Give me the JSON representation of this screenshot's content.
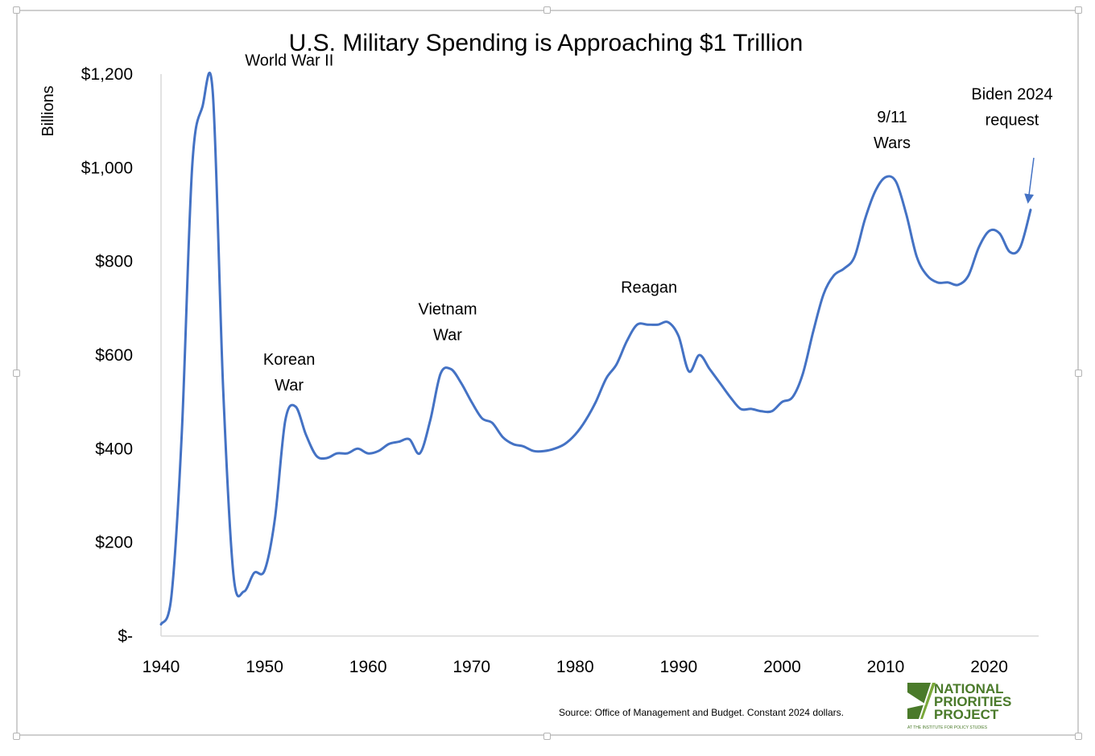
{
  "chart_data": {
    "type": "line",
    "title": "U.S. Military Spending is Approaching $1 Trillion",
    "xlabel": "",
    "ylabel": "Billions",
    "xlim": [
      1940,
      2024
    ],
    "ylim": [
      0,
      1200
    ],
    "x_ticks": [
      "1940",
      "1950",
      "1960",
      "1970",
      "1980",
      "1990",
      "2000",
      "2010",
      "2020"
    ],
    "y_ticks": [
      "$-",
      "$200",
      "$400",
      "$600",
      "$800",
      "$1,000",
      "$1,200"
    ],
    "grid": false,
    "legend": "none",
    "line_color": "#4472C4",
    "series": [
      {
        "x": [
          1940,
          1941,
          1942,
          1943,
          1944,
          1945,
          1946,
          1947,
          1948,
          1949,
          1950,
          1951,
          1952,
          1953,
          1954,
          1955,
          1956,
          1957,
          1958,
          1959,
          1960,
          1961,
          1962,
          1963,
          1964,
          1965,
          1966,
          1967,
          1968,
          1969,
          1970,
          1971,
          1972,
          1973,
          1974,
          1975,
          1976,
          1977,
          1978,
          1979,
          1980,
          1981,
          1982,
          1983,
          1984,
          1985,
          1986,
          1987,
          1988,
          1989,
          1990,
          1991,
          1992,
          1993,
          1994,
          1995,
          1996,
          1997,
          1998,
          1999,
          2000,
          2001,
          2002,
          2003,
          2004,
          2005,
          2006,
          2007,
          2008,
          2009,
          2010,
          2011,
          2012,
          2013,
          2014,
          2015,
          2016,
          2017,
          2018,
          2019,
          2020,
          2021,
          2022,
          2023,
          2024
        ],
        "values": [
          25,
          85,
          430,
          1000,
          1130,
          1160,
          530,
          130,
          95,
          135,
          140,
          250,
          460,
          490,
          430,
          385,
          380,
          390,
          390,
          400,
          390,
          395,
          410,
          415,
          420,
          390,
          460,
          560,
          570,
          540,
          500,
          465,
          455,
          425,
          410,
          405,
          395,
          395,
          400,
          410,
          430,
          460,
          500,
          550,
          580,
          630,
          665,
          665,
          665,
          670,
          640,
          565,
          600,
          570,
          540,
          510,
          485,
          485,
          480,
          480,
          500,
          510,
          560,
          650,
          730,
          770,
          785,
          810,
          890,
          950,
          980,
          970,
          900,
          810,
          770,
          755,
          755,
          750,
          770,
          830,
          865,
          860,
          820,
          830,
          910
        ]
      }
    ],
    "annotations": [
      {
        "x": 1945,
        "y": 1160,
        "lines": [
          "World War II"
        ]
      },
      {
        "x": 1953,
        "y": 490,
        "lines": [
          "Korean",
          "War"
        ]
      },
      {
        "x": 1968,
        "y": 570,
        "lines": [
          "Vietnam",
          "War"
        ]
      },
      {
        "x": 1988,
        "y": 670,
        "lines": [
          "Reagan"
        ]
      },
      {
        "x": 2010,
        "y": 980,
        "lines": [
          "9/11",
          "Wars"
        ]
      },
      {
        "x": 2024,
        "y": 910,
        "lines": [
          "Biden 2024",
          "request"
        ]
      }
    ],
    "source_note": "Source: Office of Management and Budget. Constant 2024 dollars."
  },
  "logo": {
    "line1": "NATIONAL",
    "line2": "PRIORITIES",
    "line3": "PROJECT",
    "tagline": "AT THE INSTITUTE FOR POLICY STUDIES",
    "color": "#4a7a2a"
  }
}
